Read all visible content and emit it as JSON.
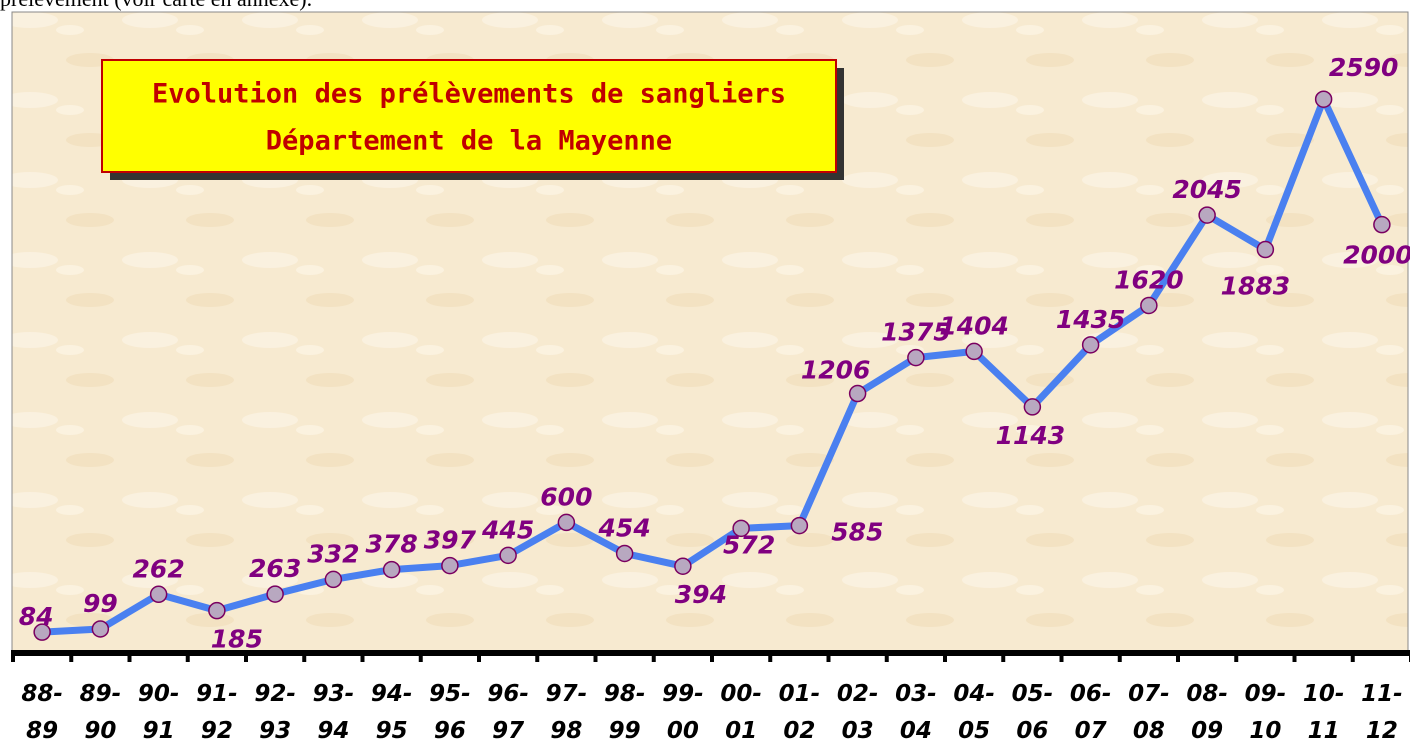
{
  "header_text": "prélèvement (voir carte en annexe).",
  "chart_data": {
    "type": "line",
    "title": "Evolution des prélèvements de sangliers",
    "subtitle": "Département de la Mayenne",
    "categories": [
      "88-\n89",
      "89-\n90",
      "90-\n91",
      "91-\n92",
      "92-\n93",
      "93-\n94",
      "94-\n95",
      "95-\n96",
      "96-\n97",
      "97-\n98",
      "98-\n99",
      "99-\n00",
      "00-\n01",
      "01-\n02",
      "02-\n03",
      "03-\n04",
      "04-\n05",
      "05-\n06",
      "06-\n07",
      "07-\n08",
      "08-\n09",
      "09-\n10",
      "10-\n11",
      "11-\n12"
    ],
    "values": [
      84,
      99,
      262,
      185,
      263,
      332,
      378,
      397,
      445,
      600,
      454,
      394,
      572,
      585,
      1206,
      1375,
      1404,
      1143,
      1435,
      1620,
      2045,
      1883,
      2590,
      2000
    ],
    "color": "#4a80f0",
    "marker_color": "#b8a8c0",
    "label_color": "#800080",
    "ylim": [
      0,
      3000
    ]
  }
}
